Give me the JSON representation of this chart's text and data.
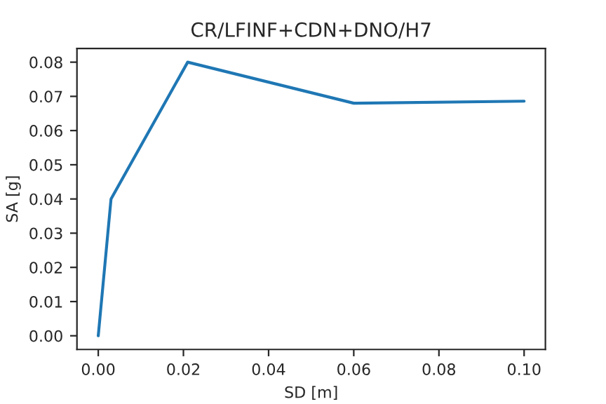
{
  "chart_data": {
    "type": "line",
    "title": "CR/LFINF+CDN+DNO/H7",
    "xlabel": "SD [m]",
    "ylabel": "SA [g]",
    "x": [
      0,
      0.003,
      0.021,
      0.06,
      0.1
    ],
    "series": [
      {
        "color": "#1f77b4",
        "values": [
          0,
          0.04,
          0.08,
          0.068,
          0.0686
        ]
      }
    ],
    "xlim": [
      -0.005,
      0.105
    ],
    "xticks": [
      {
        "value": 0,
        "label": "0.00"
      },
      0.02,
      0.04,
      0.06,
      0.08,
      {
        "value": 0.1,
        "label": "0.10"
      }
    ],
    "ylim": [
      -0.004,
      0.084
    ],
    "yticks": [
      {
        "value": 0,
        "label": "0.00"
      },
      0.01,
      0.02,
      0.03,
      0.04,
      0.05,
      0.06,
      0.07,
      0.08
    ],
    "grid": false,
    "legend": false
  }
}
